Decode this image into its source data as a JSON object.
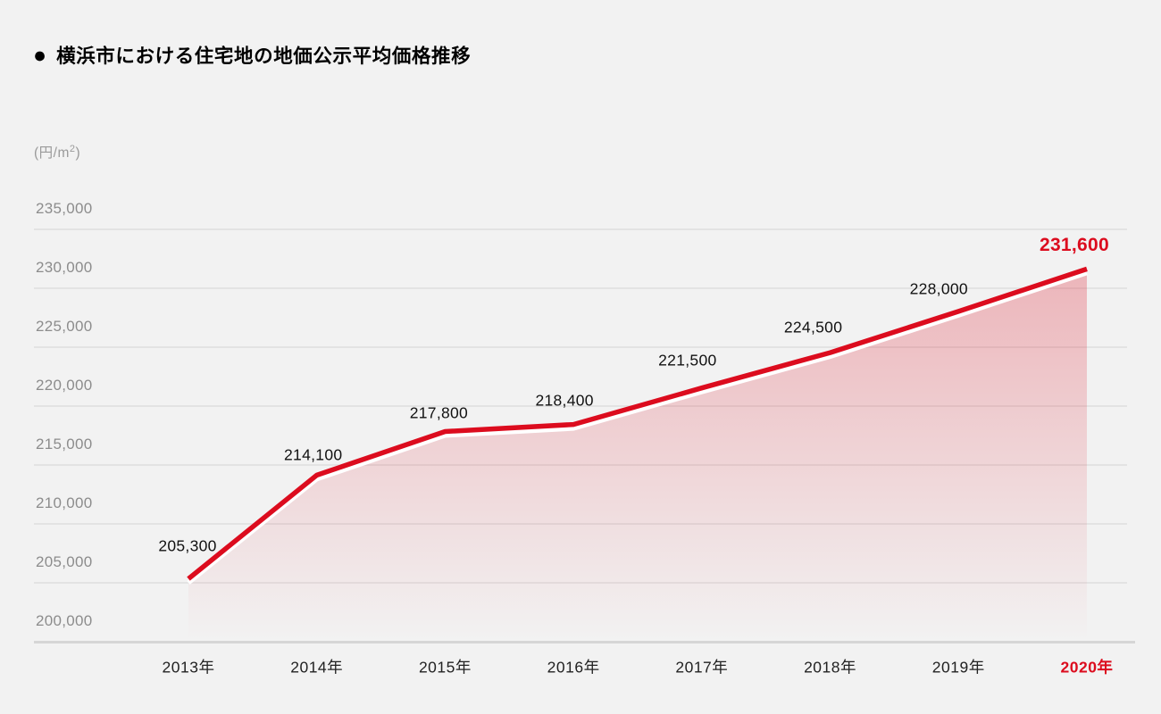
{
  "header": {
    "bullet": "●",
    "title": "横浜市における住宅地の地価公示平均価格推移"
  },
  "unit": {
    "prefix": "(円/m",
    "sup": "2",
    "suffix": ")"
  },
  "chart_data": {
    "type": "area",
    "title": "横浜市における住宅地の地価公示平均価格推移",
    "ylabel": "(円/m2)",
    "xlabel": "",
    "categories": [
      "2013年",
      "2014年",
      "2015年",
      "2016年",
      "2017年",
      "2018年",
      "2019年",
      "2020年"
    ],
    "values": [
      205300,
      214100,
      217800,
      218400,
      221500,
      224500,
      228000,
      231600
    ],
    "value_labels": [
      "205,300",
      "214,100",
      "217,800",
      "218,400",
      "221,500",
      "224,500",
      "228,000",
      "231,600"
    ],
    "y_ticks": [
      {
        "value": 235000,
        "label": "235,000"
      },
      {
        "value": 230000,
        "label": "230,000"
      },
      {
        "value": 225000,
        "label": "225,000"
      },
      {
        "value": 220000,
        "label": "220,000"
      },
      {
        "value": 215000,
        "label": "215,000"
      },
      {
        "value": 210000,
        "label": "210,000"
      },
      {
        "value": 205000,
        "label": "205,000"
      },
      {
        "value": 200000,
        "label": "200,000"
      }
    ],
    "ylim": [
      200000,
      235000
    ],
    "grid": true,
    "legend_position": "none",
    "highlight_index": 7,
    "colors": {
      "line": "#dc0c1e",
      "line_underlay": "#ffffff",
      "fill_top": "rgba(221,16,35,0.27)",
      "fill_bottom": "rgba(221,16,35,0)",
      "grid": "#e3e3e3",
      "axis": "#d6d6d6",
      "tick_text": "#8c8c8c",
      "label_text": "#111111",
      "highlight_text": "#dc0c1e",
      "background": "#f2f2f2"
    }
  }
}
